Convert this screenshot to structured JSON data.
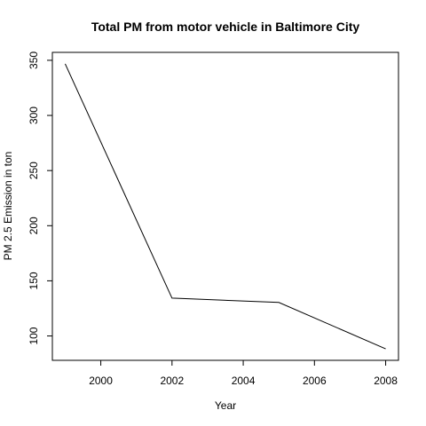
{
  "chart_data": {
    "type": "line",
    "title": "Total PM from motor vehicle in Baltimore City",
    "xlabel": "Year",
    "ylabel": "PM 2.5 Emission in ton",
    "x": [
      1999,
      2002,
      2005,
      2008
    ],
    "series": [
      {
        "values": [
          346.8,
          134.3,
          130.4,
          88.3
        ]
      }
    ],
    "xlim": [
      1998.64,
      2008.36
    ],
    "ylim": [
      77.9,
      357.2
    ],
    "xticks": [
      2000,
      2002,
      2004,
      2006,
      2008
    ],
    "yticks": [
      100,
      150,
      200,
      250,
      300,
      350
    ],
    "grid": false,
    "line_color": "#000000"
  }
}
